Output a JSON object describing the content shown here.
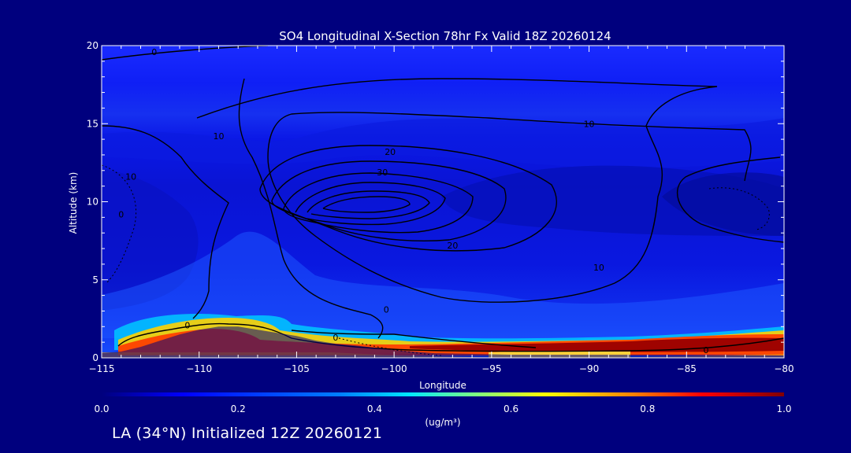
{
  "chart_data": {
    "type": "heatmap",
    "title": "SO4 Longitudinal X-Section 78hr  Fx Valid 18Z 20260124",
    "xlabel": "Longitude",
    "ylabel": "Altitude (km)",
    "xlim": [
      -115,
      -80
    ],
    "ylim": [
      0,
      20
    ],
    "x_ticks": [
      -115,
      -110,
      -105,
      -100,
      -95,
      -90,
      -85,
      -80
    ],
    "x_tick_labels": [
      "−115",
      "−110",
      "−105",
      "−100",
      "−95",
      "−90",
      "−85",
      "−80"
    ],
    "y_ticks": [
      0,
      5,
      10,
      15,
      20
    ],
    "y_tick_labels": [
      "0",
      "5",
      "10",
      "15",
      "20"
    ],
    "colorbar": {
      "label": "(ug/m³)",
      "min": 0.0,
      "max": 1.0,
      "ticks": [
        0.0,
        0.2,
        0.4,
        0.6,
        0.8,
        1.0
      ],
      "tick_labels": [
        "0.0",
        "0.2",
        "0.4",
        "0.6",
        "0.8",
        "1.0"
      ]
    },
    "field_description": "SO4 concentration; background ~0.1-0.2, boundary layer maximum ~0.9-1.0 near surface east of -98, elevated layer ~0.6 near -110 at 1.5-2.5 km",
    "contour_labels": [
      {
        "value": "0",
        "x": -112.3,
        "y": 19.6
      },
      {
        "value": "10",
        "x": -109.0,
        "y": 14.2
      },
      {
        "value": "10",
        "x": -90.0,
        "y": 15.0
      },
      {
        "value": "20",
        "x": -100.2,
        "y": 13.2
      },
      {
        "value": "30",
        "x": -100.6,
        "y": 11.9
      },
      {
        "value": "20",
        "x": -97.0,
        "y": 7.2
      },
      {
        "value": "10",
        "x": -89.5,
        "y": 5.8
      },
      {
        "value": "0",
        "x": -100.4,
        "y": 3.1
      },
      {
        "value": "0",
        "x": -110.6,
        "y": 2.1
      },
      {
        "value": "0",
        "x": -103.0,
        "y": 1.3
      },
      {
        "value": "0",
        "x": -84.0,
        "y": 0.5
      },
      {
        "value": "10",
        "x": -113.5,
        "y": 11.6
      },
      {
        "value": "0",
        "x": -114.0,
        "y": 9.2
      }
    ],
    "terrain": [
      [
        -115,
        0.3
      ],
      [
        -114,
        0.4
      ],
      [
        -113,
        0.7
      ],
      [
        -112,
        1.1
      ],
      [
        -111,
        1.5
      ],
      [
        -110,
        1.8
      ],
      [
        -109,
        2.0
      ],
      [
        -108,
        2.0
      ],
      [
        -107,
        1.8
      ],
      [
        -106,
        1.6
      ],
      [
        -105,
        1.4
      ],
      [
        -104,
        1.1
      ],
      [
        -103,
        0.9
      ],
      [
        -102,
        0.8
      ],
      [
        -101,
        0.65
      ],
      [
        -100,
        0.5
      ],
      [
        -99,
        0.4
      ],
      [
        -98,
        0.3
      ],
      [
        -96,
        0.25
      ],
      [
        -94,
        0.2
      ],
      [
        -90,
        0.2
      ],
      [
        -85,
        0.2
      ],
      [
        -80,
        0.15
      ]
    ]
  },
  "footer": {
    "location_label": "LA (34°N) Initialized 12Z 20260121"
  },
  "colors": {
    "background": "#00007e",
    "axis": "#ffffff",
    "contour": "#000000"
  }
}
